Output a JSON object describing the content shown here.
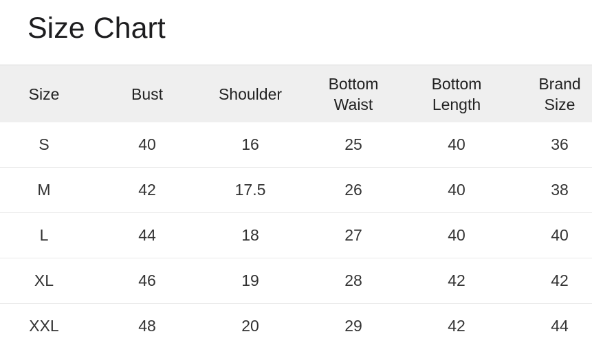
{
  "title": "Size Chart",
  "size_table": {
    "columns": [
      "Size",
      "Bust",
      "Shoulder",
      "Bottom Waist",
      "Bottom Length",
      "Brand Size"
    ],
    "rows": [
      [
        "S",
        "40",
        "16",
        "25",
        "40",
        "36"
      ],
      [
        "M",
        "42",
        "17.5",
        "26",
        "40",
        "38"
      ],
      [
        "L",
        "44",
        "18",
        "27",
        "40",
        "40"
      ],
      [
        "XL",
        "46",
        "19",
        "28",
        "42",
        "42"
      ],
      [
        "XXL",
        "48",
        "20",
        "29",
        "42",
        "44"
      ]
    ]
  },
  "colors": {
    "title_text": "#1d1d1f",
    "header_bg": "#efefef",
    "header_text": "#222222",
    "cell_text": "#333333",
    "row_divider": "#e9e9e9",
    "table_top_border": "#dbdbdb"
  }
}
